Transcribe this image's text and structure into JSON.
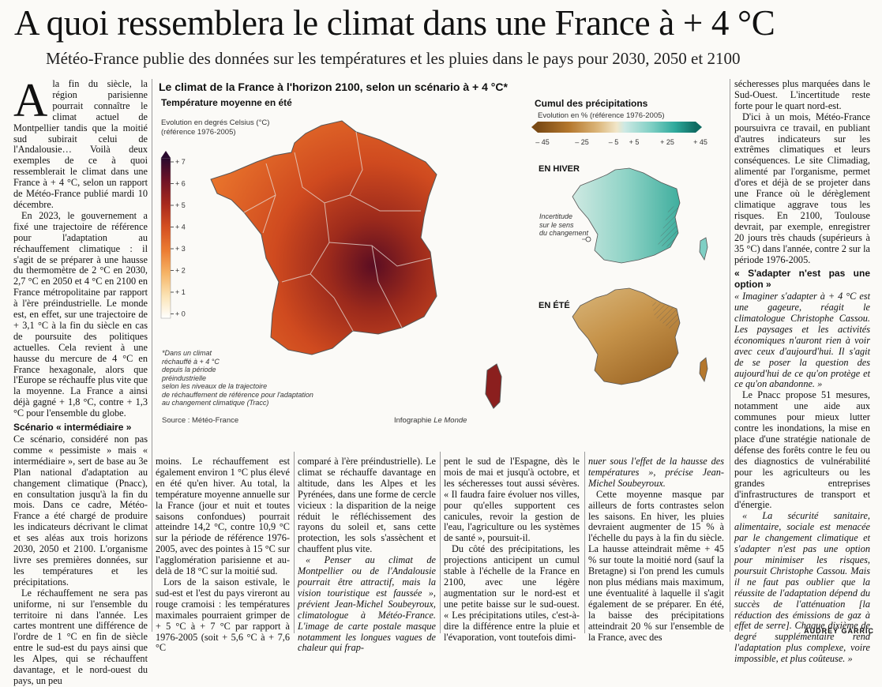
{
  "headline": "A quoi ressemblera le climat dans une France à + 4 °C",
  "subheadline": "Météo-France publie des données sur les températures et les pluies dans le pays pour 2030, 2050 et 2100",
  "col1": {
    "dropcap": "A",
    "p1": "la fin du siècle, la région parisienne pourrait connaître le climat actuel de Montpellier tandis que la moitié sud subirait celui de l'Andalousie… Voilà deux exemples de ce à quoi ressemblerait le climat dans une France à + 4 °C, selon un rapport de Météo-France publié mardi 10 décembre.",
    "p2": "En 2023, le gouvernement a fixé une trajectoire de référence pour l'adaptation au réchauffement climatique : il s'agit de se préparer à une hausse du thermomètre de 2 °C en 2030, 2,7 °C en 2050 et 4 °C en 2100 en France métropolitaine par rapport à l'ère préindustrielle. Le monde est, en effet, sur une trajectoire de + 3,1 °C à la fin du siècle en cas de poursuite des politiques actuelles. Cela revient à une hausse du mercure de 4 °C en France hexagonale, alors que l'Europe se réchauffe plus vite que la moyenne. La France a ainsi déjà gagné + 1,8 °C, contre + 1,3 °C pour l'ensemble du globe.",
    "heading": "Scénario « intermédiaire »",
    "p3": "Ce scénario, considéré non pas comme « pessimiste » mais « intermédiaire », sert de base au 3e Plan national d'adaptation au changement climatique (Pnacc), en consultation jusqu'à la fin du mois. Dans ce cadre, Météo-France a été chargé de produire les indicateurs décrivant le climat et ses aléas aux trois horizons 2030, 2050 et 2100. L'organisme livre ses premières données, sur les températures et les précipitations.",
    "p4": "Le réchauffement ne sera pas uniforme, ni sur l'ensemble du territoire ni dans l'année. Les cartes montrent une différence de l'ordre de 1 °C en fin de siècle entre le sud-est du pays ainsi que les Alpes, qui se réchauffent davantage, et le nord-ouest du pays, un peu"
  },
  "col2": "moins. Le réchauffement est également environ 1 °C plus élevé en été qu'en hiver. Au total, la température moyenne annuelle sur la France (jour et nuit et toutes saisons confondues) pourrait atteindre 14,2 °C, contre 10,9 °C sur la période de référence 1976-2005, avec des pointes à 15 °C sur l'agglomération parisienne et au-delà de 18 °C sur la moitié sud.",
  "col2b": "Lors de la saison estivale, le sud-est et l'est du pays vireront au rouge cramoisi : les températures maximales pourraient grimper de + 5 °C à + 7 °C par rapport à 1976-2005 (soit + 5,6 °C à + 7,6 °C",
  "col3a": "comparé à l'ère préindustrielle). Le climat se réchauffe davantage en altitude, dans les Alpes et les Pyrénées, dans une forme de cercle vicieux : la disparition de la neige réduit le réfléchissement des rayons du soleil et, sans cette protection, les sols s'assèchent et chauffent plus vite.",
  "col3b": "« Penser au climat de Montpellier ou de l'Andalousie pourrait être attractif, mais la vision touristique est faussée », prévient Jean-Michel Soubeyroux, climatologue à Météo-France. L'image de carte postale masque notamment les longues vagues de chaleur qui frap-",
  "col4a": "pent le sud de l'Espagne, dès le mois de mai et jusqu'à octobre, et les sécheresses tout aussi sévères. « Il faudra faire évoluer nos villes, pour qu'elles supportent ces canicules, revoir la gestion de l'eau, l'agriculture ou les systèmes de santé », poursuit-il.",
  "col4b": "Du côté des précipitations, les projections anticipent un cumul stable à l'échelle de la France en 2100, avec une légère augmentation sur le nord-est et une petite baisse sur le sud-ouest. « Les précipitations utiles, c'est-à-dire la différence entre la pluie et l'évaporation, vont toutefois dimi-",
  "col5a": "nuer sous l'effet de la hausse des températures », précise Jean-Michel Soubeyroux.",
  "col5b": "Cette moyenne masque par ailleurs de forts contrastes selon les saisons. En hiver, les pluies devraient augmenter de 15 % à l'échelle du pays à la fin du siècle. La hausse atteindrait même + 45 % sur toute la moitié nord (sauf la Bretagne) si l'on prend les cumuls non plus médians mais maximum, une éventualité à laquelle il s'agit également de se préparer. En été, la baisse des précipitations atteindrait 20 % sur l'ensemble de la France, avec des",
  "col6": {
    "p1": "sécheresses plus marquées dans le Sud-Ouest. L'incertitude reste forte pour le quart nord-est.",
    "p2": "D'ici à un mois, Météo-France poursuivra ce travail, en publiant d'autres indicateurs sur les extrêmes climatiques et leurs conséquences. Le site Climadiag, alimenté par l'organisme, permet d'ores et déjà de se projeter dans une France où le dérèglement climatique aggrave tous les risques. En 2100, Toulouse devrait, par exemple, enregistrer 20 jours très chauds (supérieurs à 35 °C) dans l'année, contre 2 sur la période 1976-2005.",
    "heading": "« S'adapter n'est pas une option »",
    "p3": "« Imaginer s'adapter à + 4 °C est une gageure, réagit le climatologue Christophe Cassou. Les paysages et les activités économiques n'auront rien à voir avec ceux d'aujourd'hui. Il s'agit de se poser la question des aujourd'hui de ce qu'on protège et ce qu'on abandonne. »",
    "p4": "Le Pnacc propose 51 mesures, notamment une aide aux communes pour mieux lutter contre les inondations, la mise en place d'une stratégie nationale de défense des forêts contre le feu ou des diagnostics de vulnérabilité pour les agriculteurs ou les grandes entreprises d'infrastructures de transport et d'énergie.",
    "p5": "« La sécurité sanitaire, alimentaire, sociale est menacée par le changement climatique et s'adapter n'est pas une option pour minimiser les risques, poursuit Christophe Cassou. Mais il ne faut pas oublier que la réussite de l'adaptation dépend du succès de l'atténuation [la réduction des émissions de gaz à effet de serre]. Chaque dixième de degré supplémentaire rend l'adaptation plus complexe, voire impossible, et plus coûteuse. »"
  },
  "credit": "AUDREY GARRIC",
  "infographic": {
    "title": "Le climat de la France à l'horizon 2100, selon un scénario à + 4 °C*",
    "temp_title": "Température moyenne en été",
    "temp_unit": "Evolution en degrés Celsius (°C)",
    "temp_ref": "(référence 1976-2005)",
    "temp_ticks": [
      "+ 7",
      "+ 6",
      "+ 5",
      "+ 4",
      "+ 3",
      "+ 2",
      "+ 1",
      "+ 0"
    ],
    "footnote": [
      "*Dans un climat",
      "réchauffé à + 4 °C",
      "depuis la période",
      "préindustrielle",
      "selon les niveaux de la trajectoire",
      "de réchauffement de référence pour l'adaptation",
      "au changement climatique (Tracc)"
    ],
    "source": "Source : Météo-France",
    "infographie": "Infographie",
    "publication": "Le Monde",
    "precip_title": "Cumul des précipitations",
    "precip_unit": "Evolution en % (référence 1976-2005)",
    "precip_ticks": [
      "– 45",
      "– 25",
      "– 5",
      "+ 5",
      "+ 25",
      "+ 45"
    ],
    "hiver": "EN HIVER",
    "ete": "EN ÉTÉ",
    "uncert": [
      "Incertitude",
      "sur le sens",
      "du changement"
    ],
    "colors": {
      "temp_scale": [
        "#ffffff",
        "#fbe3b4",
        "#f6b466",
        "#ec7d33",
        "#d44f21",
        "#a92a1d",
        "#6f1326",
        "#2a0a2e"
      ],
      "precip_scale": [
        "#7a4a15",
        "#b5782e",
        "#dcb67a",
        "#f1e6c8",
        "#cde9e4",
        "#7fcfc4",
        "#2ea99b",
        "#0f6b62"
      ]
    }
  }
}
